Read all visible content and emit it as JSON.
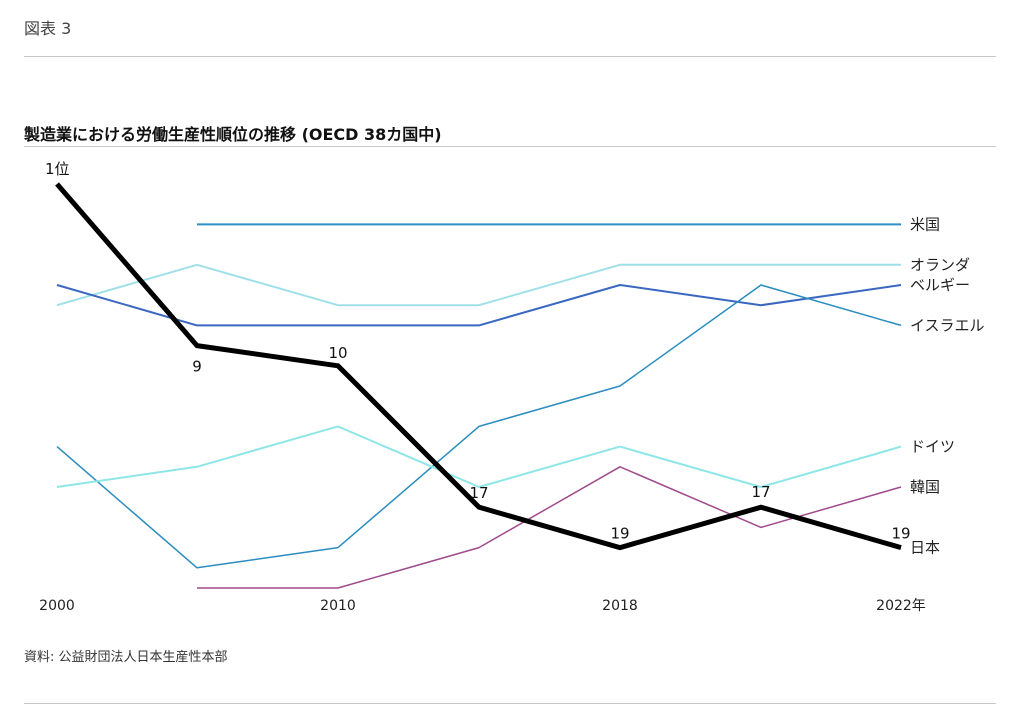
{
  "figure_label": "図表 3",
  "source": "資料: 公益財団法人日本生産性本部",
  "chart_data": {
    "type": "line",
    "title": "製造業における労働生産性順位の推移 (OECD 38カ国中)",
    "x": [
      2000,
      2005,
      2010,
      2015,
      2018,
      2020,
      2022
    ],
    "x_tick_labels": [
      {
        "x": 2000,
        "label": "2000"
      },
      {
        "x": 2010,
        "label": "2010"
      },
      {
        "x": 2018,
        "label": "2018"
      },
      {
        "x": 2022,
        "label": "2022年"
      }
    ],
    "y_direction": "rank (1 at top)",
    "ylim": [
      1,
      21
    ],
    "grid": false,
    "legend": "labels at right end of lines",
    "series": [
      {
        "name": "米国",
        "color": "#2f8fc4",
        "width": 2,
        "values": [
          null,
          3,
          3,
          3,
          3,
          3,
          3
        ]
      },
      {
        "name": "オランダ",
        "color": "#9fe0e8",
        "width": 2,
        "values": [
          7,
          5,
          7,
          7,
          5,
          5,
          5
        ]
      },
      {
        "name": "ベルギー",
        "color": "#3a67c0",
        "width": 2,
        "values": [
          6,
          8,
          8,
          8,
          6,
          7,
          6
        ]
      },
      {
        "name": "イスラエル",
        "color": "#2a8cbf",
        "width": 1.5,
        "values": [
          14,
          20,
          19,
          13,
          11,
          6,
          8
        ]
      },
      {
        "name": "ドイツ",
        "color": "#8fe6e6",
        "width": 2,
        "values": [
          16,
          15,
          13,
          16,
          14,
          16,
          14
        ]
      },
      {
        "name": "韓国",
        "color": "#a04a8c",
        "width": 1.5,
        "values": [
          null,
          21,
          21,
          19,
          15,
          18,
          16
        ]
      },
      {
        "name": "日本",
        "color": "#000000",
        "width": 5,
        "values": [
          1,
          9,
          10,
          17,
          19,
          17,
          19
        ]
      }
    ],
    "annotations": [
      {
        "series": "日本",
        "x": 2000,
        "text": "1位"
      },
      {
        "series": "日本",
        "x": 2005,
        "text": "9"
      },
      {
        "series": "日本",
        "x": 2010,
        "text": "10"
      },
      {
        "series": "日本",
        "x": 2015,
        "text": "17"
      },
      {
        "series": "日本",
        "x": 2018,
        "text": "19"
      },
      {
        "series": "日本",
        "x": 2020,
        "text": "17"
      },
      {
        "series": "日本",
        "x": 2022,
        "text": "19"
      }
    ]
  }
}
